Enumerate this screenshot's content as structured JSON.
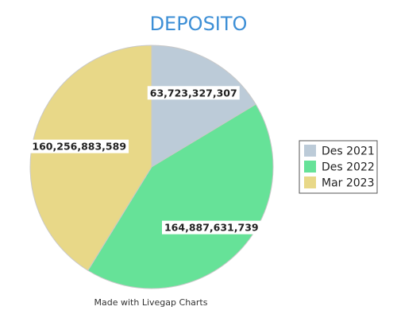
{
  "chart_data": {
    "type": "pie",
    "title": "DEPOSITO",
    "categories": [
      "Des 2021",
      "Des 2022",
      "Mar 2023"
    ],
    "values": [
      63723327307,
      164887631739,
      160256883589
    ],
    "value_labels": [
      "63,723,327,307",
      "164,887,631,739",
      "160,256,883,589"
    ],
    "colors": [
      "#bccbd8",
      "#66e298",
      "#e8d888"
    ],
    "legend_position": "right"
  },
  "footer": "Made with Livegap Charts"
}
